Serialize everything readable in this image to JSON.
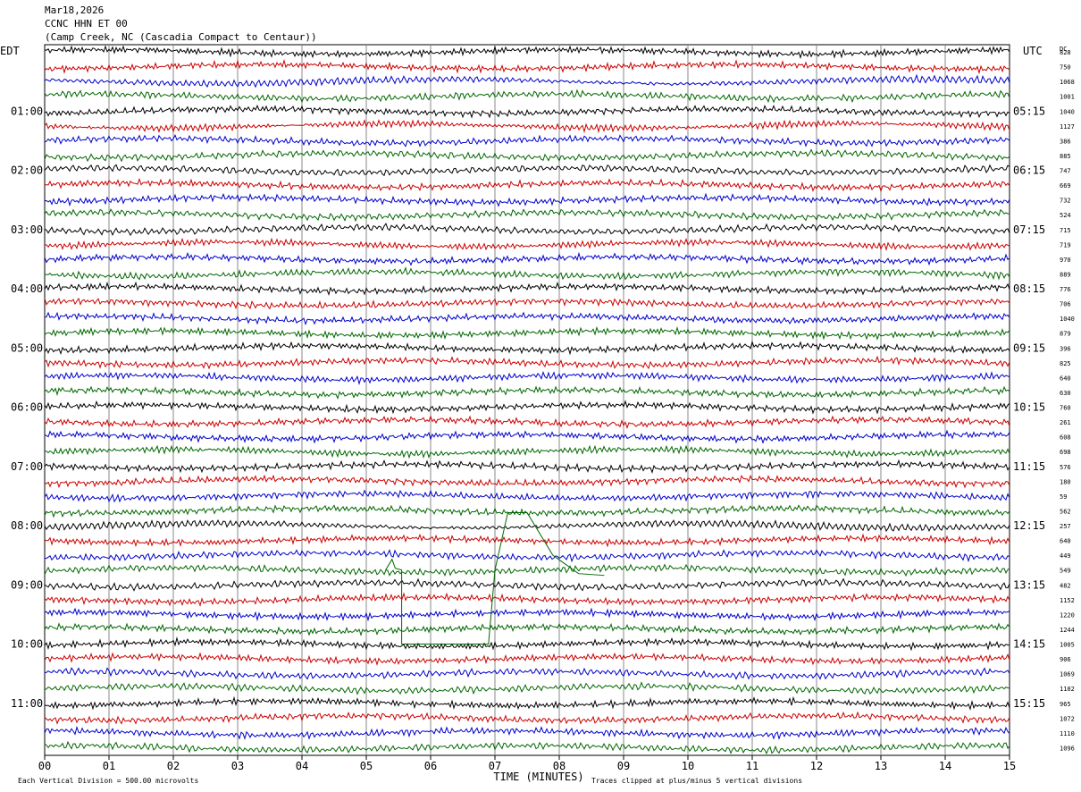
{
  "header": {
    "date": "Mar18,2026",
    "channel": "CCNC HHN ET 00",
    "station": "(Camp Creek, NC (Cascadia Compact to Centaur))"
  },
  "left_label": "EDT",
  "right_label": "UTC",
  "dc_label": "DC",
  "footer": {
    "scale_note": "Each Vertical Division =  500.00 microvolts",
    "clip_note": "Traces clipped at plus/minus 5 vertical divisions"
  },
  "colors": {
    "trace_cycle": [
      "#000000",
      "#cc0000",
      "#0000cc",
      "#006600"
    ],
    "grid": "#888888"
  },
  "chart_data": {
    "type": "line",
    "title": "CCNC HHN ET 00",
    "xlabel": "TIME (MINUTES)",
    "xlim": [
      0,
      15
    ],
    "x_ticks": [
      "00",
      "01",
      "02",
      "03",
      "04",
      "05",
      "06",
      "07",
      "08",
      "09",
      "10",
      "11",
      "12",
      "13",
      "14",
      "15"
    ],
    "left_hour_labels": [
      "01:00",
      "02:00",
      "03:00",
      "04:00",
      "05:00",
      "06:00",
      "07:00",
      "08:00",
      "09:00",
      "10:00",
      "11:00"
    ],
    "right_hour_labels": [
      "05:15",
      "06:15",
      "07:15",
      "08:15",
      "09:15",
      "10:15",
      "11:15",
      "12:15",
      "13:15",
      "14:15",
      "15:15"
    ],
    "dc_offsets": [
      828,
      750,
      1068,
      1001,
      1040,
      1127,
      386,
      885,
      747,
      669,
      732,
      524,
      715,
      719,
      970,
      889,
      776,
      706,
      1040,
      879,
      396,
      825,
      640,
      630,
      760,
      261,
      608,
      698,
      576,
      180,
      59,
      562,
      257,
      640,
      449,
      549,
      482,
      1152,
      1220,
      1244,
      1005,
      906,
      1069,
      1102,
      965,
      1072,
      1110,
      1096
    ],
    "traces_per_hour": 4,
    "minutes_per_trace": 15
  }
}
